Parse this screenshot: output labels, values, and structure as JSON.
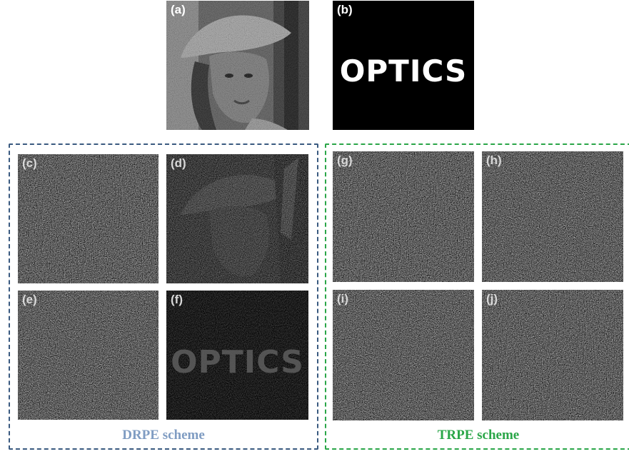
{
  "panels": [
    {
      "id": "a",
      "label": "(a)"
    },
    {
      "id": "b",
      "label": "(b)",
      "text": "OPTICS"
    },
    {
      "id": "c",
      "label": "(c)"
    },
    {
      "id": "d",
      "label": "(d)"
    },
    {
      "id": "e",
      "label": "(e)"
    },
    {
      "id": "f",
      "label": "(f)",
      "text": "OPTICS"
    },
    {
      "id": "g",
      "label": "(g)"
    },
    {
      "id": "h",
      "label": "(h)"
    },
    {
      "id": "i",
      "label": "(i)"
    },
    {
      "id": "j",
      "label": "(j)"
    }
  ],
  "groups": {
    "drpe": {
      "label": "DRPE scheme",
      "color": "#3a5a80",
      "label_color": "#7f9cc2"
    },
    "trpe": {
      "label": "TRPE scheme",
      "color": "#2aa648",
      "label_color": "#2aa648"
    }
  }
}
